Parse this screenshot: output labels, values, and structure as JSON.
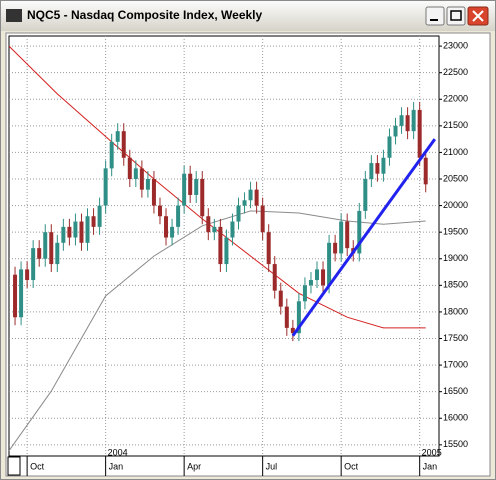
{
  "window": {
    "title": "NQC5 - Nasdaq Composite Index, Weekly"
  },
  "chart_data": {
    "type": "candlestick",
    "categories": [
      null,
      null,
      "Oct",
      null,
      null,
      null,
      null,
      null,
      null,
      null,
      null,
      null,
      null,
      null,
      null,
      "Jan",
      null,
      null,
      null,
      null,
      null,
      null,
      null,
      null,
      null,
      null,
      null,
      null,
      "Apr",
      null,
      null,
      null,
      null,
      null,
      null,
      null,
      null,
      null,
      null,
      null,
      null,
      "Jul",
      null,
      null,
      null,
      null,
      null,
      null,
      null,
      null,
      null,
      null,
      null,
      null,
      "Oct",
      null,
      null,
      null,
      null,
      null,
      null,
      null,
      null,
      null,
      null,
      null,
      null,
      "Jan",
      null
    ],
    "open": [
      18700,
      17900,
      18800,
      18600,
      19200,
      19000,
      19500,
      18900,
      19300,
      19600,
      19400,
      19700,
      19300,
      19800,
      19600,
      20000,
      20700,
      21200,
      21400,
      20900,
      20500,
      20700,
      20300,
      20500,
      20000,
      19800,
      19400,
      19600,
      20000,
      20600,
      20200,
      20500,
      19800,
      19500,
      19600,
      18900,
      19400,
      19700,
      20000,
      20100,
      20300,
      20000,
      19500,
      18900,
      18400,
      18100,
      17700,
      17600,
      18200,
      18500,
      18600,
      18800,
      18500,
      19300,
      19100,
      19700,
      19200,
      19100,
      19900,
      20500,
      20800,
      20600,
      20900,
      21300,
      21500,
      21700,
      21400,
      21800,
      20900
    ],
    "high": [
      18850,
      18950,
      18950,
      19350,
      19350,
      19650,
      19650,
      19450,
      19750,
      19750,
      19850,
      19850,
      19950,
      19950,
      20150,
      20850,
      21350,
      21550,
      21550,
      21050,
      20850,
      20850,
      20650,
      20650,
      20150,
      19950,
      19750,
      20150,
      20750,
      20750,
      20650,
      20650,
      19950,
      19750,
      19750,
      19550,
      19850,
      20150,
      20250,
      20450,
      20450,
      20150,
      19650,
      19050,
      18550,
      18250,
      17850,
      18350,
      18650,
      18750,
      18950,
      18950,
      19450,
      19450,
      19850,
      19850,
      19350,
      20050,
      20650,
      20950,
      20950,
      21050,
      21450,
      21650,
      21850,
      21850,
      21950,
      21950,
      21050
    ],
    "low": [
      17750,
      17750,
      18450,
      18450,
      18850,
      18850,
      18750,
      18750,
      19150,
      19250,
      19250,
      19150,
      19150,
      19450,
      19450,
      19850,
      20550,
      21050,
      20750,
      20350,
      20350,
      20150,
      20150,
      19850,
      19650,
      19250,
      19250,
      19450,
      19850,
      20050,
      20050,
      19650,
      19350,
      19350,
      18750,
      18750,
      19250,
      19550,
      19850,
      19950,
      19850,
      19350,
      18750,
      18250,
      17950,
      17550,
      17450,
      17450,
      18050,
      18350,
      18450,
      18350,
      18350,
      18950,
      18950,
      19050,
      18950,
      18950,
      19750,
      20350,
      20450,
      20450,
      20750,
      21150,
      21350,
      21250,
      21250,
      20750,
      20250
    ],
    "close": [
      17900,
      18800,
      18600,
      19200,
      19000,
      19500,
      18900,
      19300,
      19600,
      19400,
      19700,
      19300,
      19800,
      19600,
      20000,
      20700,
      21200,
      21400,
      20900,
      20500,
      20700,
      20300,
      20500,
      20000,
      19800,
      19400,
      19600,
      20000,
      20600,
      20200,
      20500,
      19800,
      19500,
      19600,
      18900,
      19400,
      19700,
      20000,
      20100,
      20300,
      20000,
      19500,
      18900,
      18400,
      18100,
      17700,
      17600,
      18200,
      18500,
      18600,
      18800,
      18500,
      19300,
      19100,
      19700,
      19200,
      19100,
      19900,
      20500,
      20800,
      20600,
      20900,
      21300,
      21500,
      21700,
      21400,
      21800,
      20900,
      20400
    ],
    "up_color": "#2f8f86",
    "down_color": "#9c2a2a",
    "series": [
      {
        "color": "#d42020",
        "x": [
          -1,
          7,
          15,
          23,
          31,
          39,
          47,
          55,
          61,
          68
        ],
        "values": [
          23000,
          22100,
          21300,
          20500,
          19750,
          19050,
          18350,
          17900,
          17700,
          17700
        ]
      },
      {
        "color": "#8a8a8a",
        "x": [
          -1,
          6,
          15,
          23,
          31,
          39,
          47,
          55,
          61,
          68
        ],
        "values": [
          15390,
          16510,
          18300,
          19050,
          19620,
          19900,
          19860,
          19710,
          19650,
          19710
        ]
      }
    ],
    "trendline": {
      "color": "#2222ee",
      "x": [
        46,
        69.5
      ],
      "values": [
        17550,
        21250
      ]
    },
    "annotations": [
      {
        "text": "2004",
        "x": 15
      },
      {
        "text": "2005",
        "x": 67
      }
    ],
    "xlim": [
      -1,
      70.2
    ],
    "ylim": [
      15290,
      23190
    ],
    "yticks": [
      15500,
      16000,
      16500,
      17000,
      17500,
      18000,
      18500,
      19000,
      19500,
      20000,
      20500,
      21000,
      21500,
      22000,
      22500,
      23000
    ],
    "grid": true
  }
}
